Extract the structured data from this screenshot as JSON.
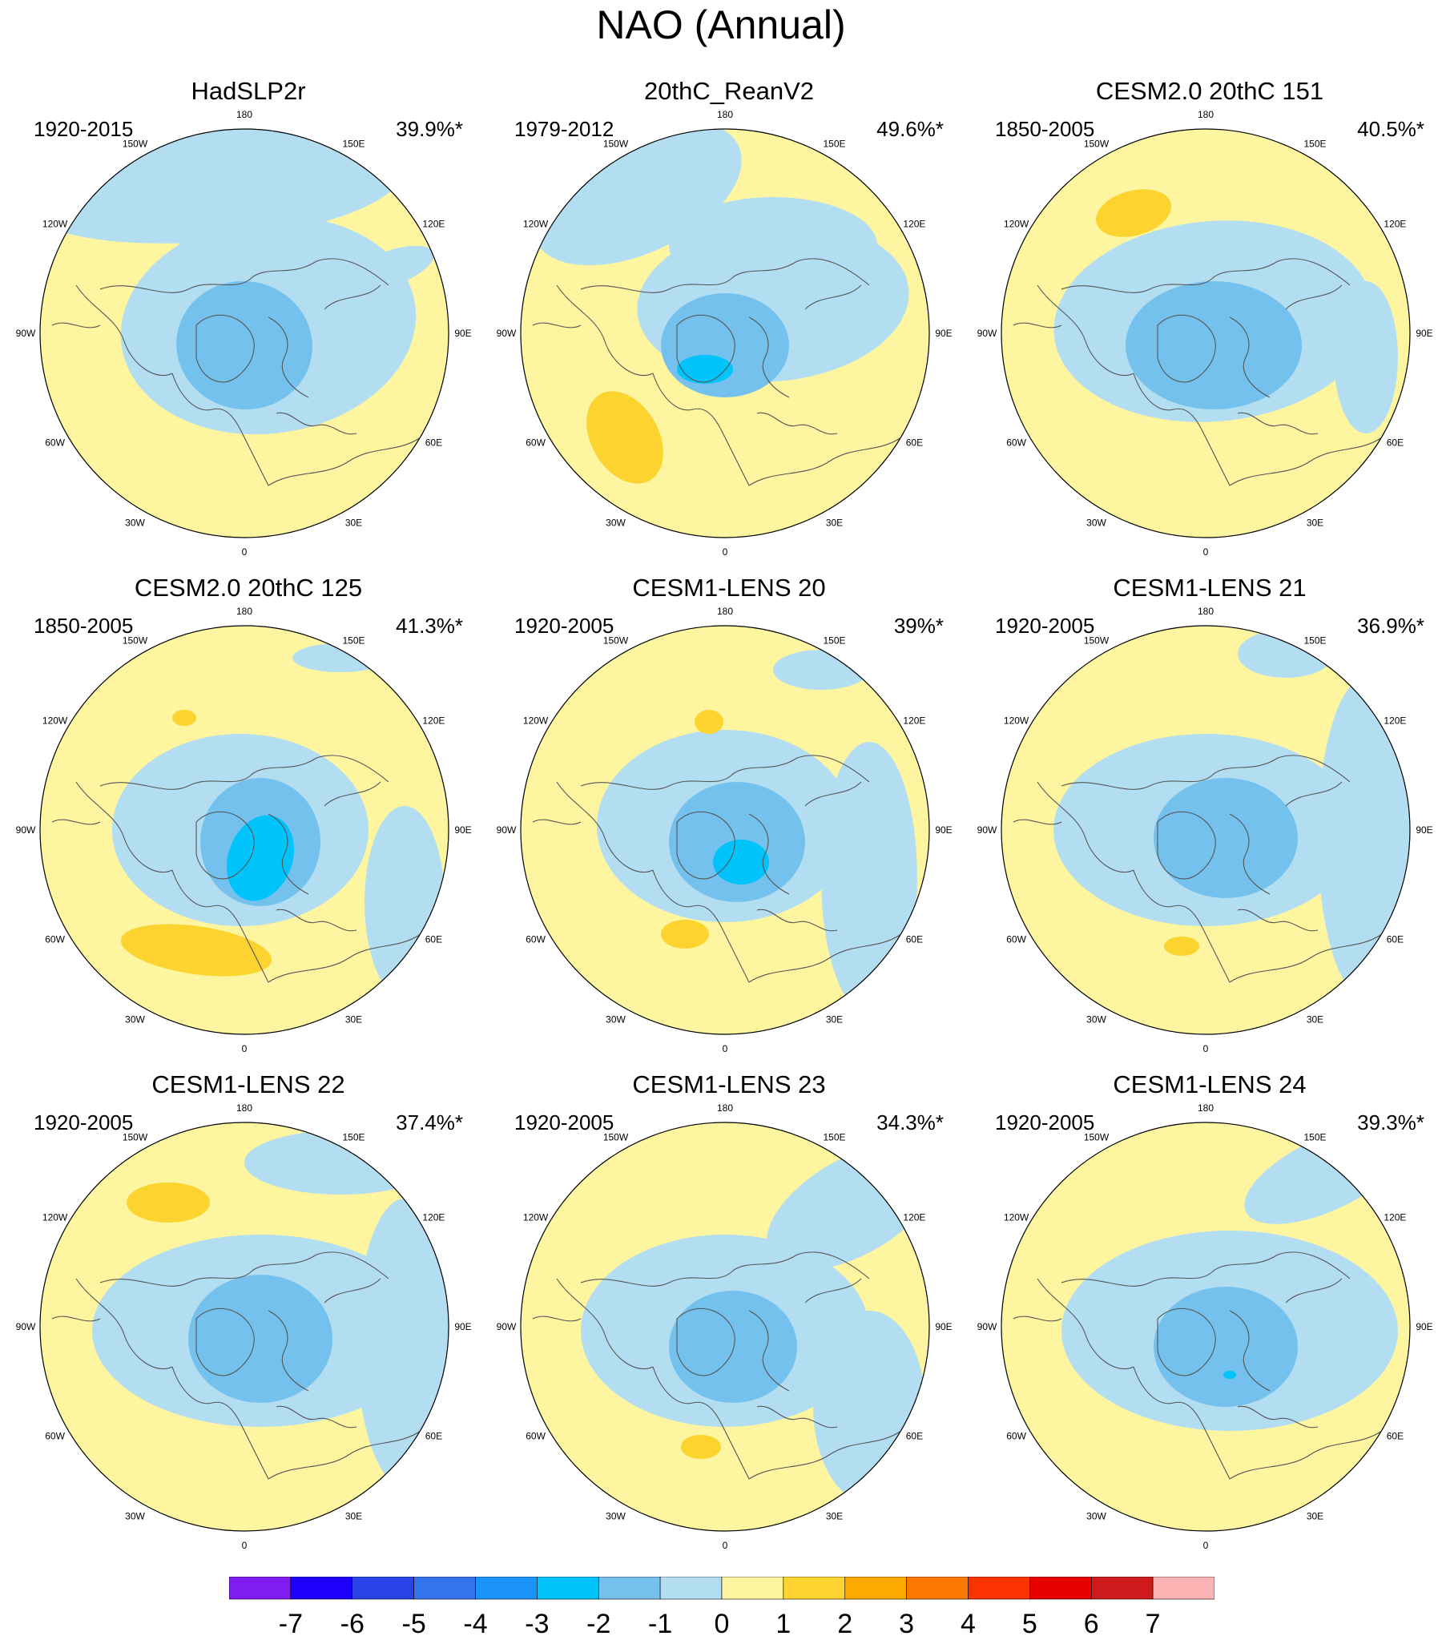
{
  "title": "NAO (Annual)",
  "colors": {
    "yellow": "#FDF5A0",
    "lightblue": "#B3DEF2",
    "midblue": "#75C1EE",
    "cyan": "#00C3FB",
    "orange": "#FCD32F",
    "coast": "#555555"
  },
  "longitude_labels": [
    "180",
    "150E",
    "120E",
    "90E",
    "60E",
    "30E",
    "0",
    "30W",
    "60W",
    "90W",
    "120W",
    "150W"
  ],
  "panels": [
    {
      "title": "HadSLP2r",
      "period": "1920-2015",
      "percent": "39.9%*"
    },
    {
      "title": "20thC_ReanV2",
      "period": "1979-2012",
      "percent": "49.6%*"
    },
    {
      "title": "CESM2.0 20thC 151",
      "period": "1850-2005",
      "percent": "40.5%*"
    },
    {
      "title": "CESM2.0 20thC 125",
      "period": "1850-2005",
      "percent": "41.3%*"
    },
    {
      "title": "CESM1-LENS 20",
      "period": "1920-2005",
      "percent": "39%*"
    },
    {
      "title": "CESM1-LENS 21",
      "period": "1920-2005",
      "percent": "36.9%*"
    },
    {
      "title": "CESM1-LENS 22",
      "period": "1920-2005",
      "percent": "37.4%*"
    },
    {
      "title": "CESM1-LENS 23",
      "period": "1920-2005",
      "percent": "34.3%*"
    },
    {
      "title": "CESM1-LENS 24",
      "period": "1920-2005",
      "percent": "39.3%*"
    }
  ],
  "colorbar": {
    "labels": [
      "-7",
      "-6",
      "-5",
      "-4",
      "-3",
      "-2",
      "-1",
      "0",
      "1",
      "2",
      "3",
      "4",
      "5",
      "6",
      "7"
    ],
    "colors": [
      "#7F1DF0",
      "#1D00FB",
      "#2A43E8",
      "#3373EE",
      "#1A93FB",
      "#00C3FB",
      "#75C1EE",
      "#B3DEF2",
      "#FDF5A0",
      "#FCD32F",
      "#FBAA00",
      "#FB7800",
      "#FB3300",
      "#E60000",
      "#CD1A1A",
      "#FBB3B3"
    ]
  }
}
